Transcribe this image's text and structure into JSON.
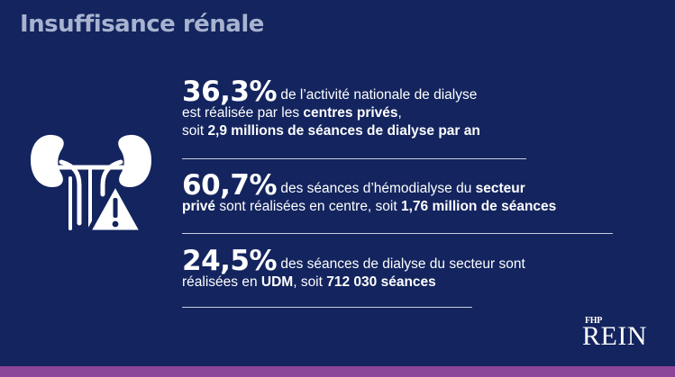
{
  "title": "Insuffisance rénale",
  "stats": [
    {
      "value": "36,3%",
      "line1_text": "de l’activité nationale de dialyse",
      "line2_text": "est réalisée par les ",
      "line2_bold": "centres privés",
      "line2_end": ",",
      "line3_text": "soit ",
      "line3_bold": "2,9 millions de séances de dialyse par an"
    },
    {
      "value": "60,7%",
      "line1_text": "des séances d’hémodialyse du ",
      "line1_bold": "secteur",
      "line2_bold": "privé",
      "line2_text": " sont réalisées en centre, soit ",
      "line2_bold2": "1,76 million de séances"
    },
    {
      "value": "24,5%",
      "line1_text": "des séances de dialyse du secteur sont",
      "line2_text": "réalisées en ",
      "line2_bold": "UDM",
      "line2_mid": ", soit ",
      "line2_bold2": "712 030 séances"
    }
  ],
  "logo": {
    "top": "FHP",
    "main": "REIN"
  },
  "icons": {
    "illustration": "kidneys-warning-icon"
  },
  "colors": {
    "background": "#13245e",
    "title": "#a7b3cf",
    "text": "#ffffff",
    "bottom_band": "#8c4699"
  }
}
